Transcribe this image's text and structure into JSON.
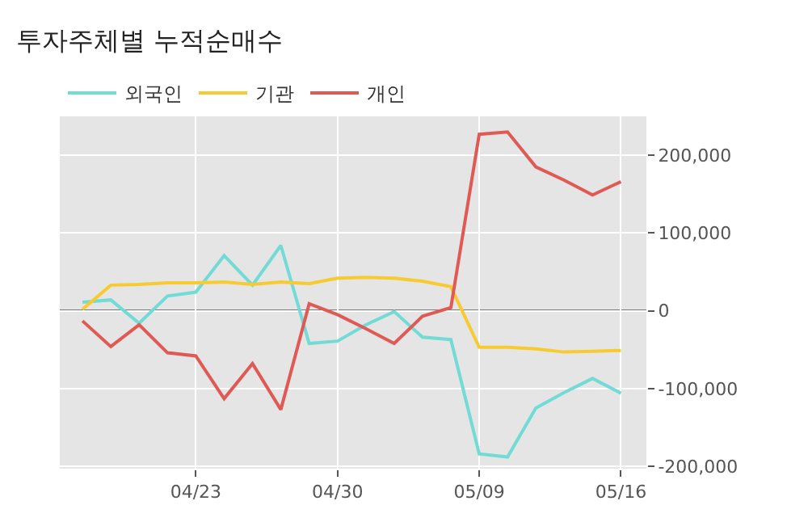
{
  "chart_data": {
    "type": "line",
    "title": "투자주체별 누적순매수",
    "categories": [
      null,
      null,
      null,
      null,
      "04/23",
      null,
      null,
      null,
      null,
      "04/30",
      null,
      null,
      null,
      null,
      "05/09",
      null,
      null,
      null,
      null,
      "05/16"
    ],
    "series": [
      {
        "name": "외국인",
        "color": "#72dbd5",
        "values": [
          11000,
          14000,
          -16000,
          19000,
          24000,
          71000,
          33000,
          84000,
          -42000,
          -39000,
          -18000,
          -1000,
          -34000,
          -37000,
          -184000,
          -188000,
          -125000,
          -105000,
          -87000,
          -106000
        ]
      },
      {
        "name": "기관",
        "color": "#f7cb2f",
        "values": [
          2000,
          33000,
          34000,
          36000,
          36000,
          37000,
          34000,
          37000,
          35000,
          42000,
          43000,
          42000,
          38000,
          31000,
          -47000,
          -47000,
          -49000,
          -53000,
          -52000,
          -51000
        ]
      },
      {
        "name": "개인",
        "color": "#e05a55",
        "values": [
          -13000,
          -46000,
          -18000,
          -54000,
          -58000,
          -113000,
          -68000,
          -127000,
          9000,
          -5000,
          -23000,
          -42000,
          -7000,
          4000,
          227000,
          230000,
          185000,
          168000,
          149000,
          166000
        ]
      }
    ],
    "ylim": [
      -203000,
      250000
    ],
    "yticks": [
      {
        "value": -200000,
        "label": "-200,000"
      },
      {
        "value": -100000,
        "label": "-100,000"
      },
      0,
      {
        "value": 100000,
        "label": "100,000"
      },
      {
        "value": 200000,
        "label": "200,000"
      }
    ],
    "ref_lines": [
      {
        "axis": "y",
        "value": 0,
        "label": null,
        "color": "#777777"
      }
    ],
    "grid": true,
    "legend": "top left",
    "marker": "none",
    "line_style": "solid"
  }
}
